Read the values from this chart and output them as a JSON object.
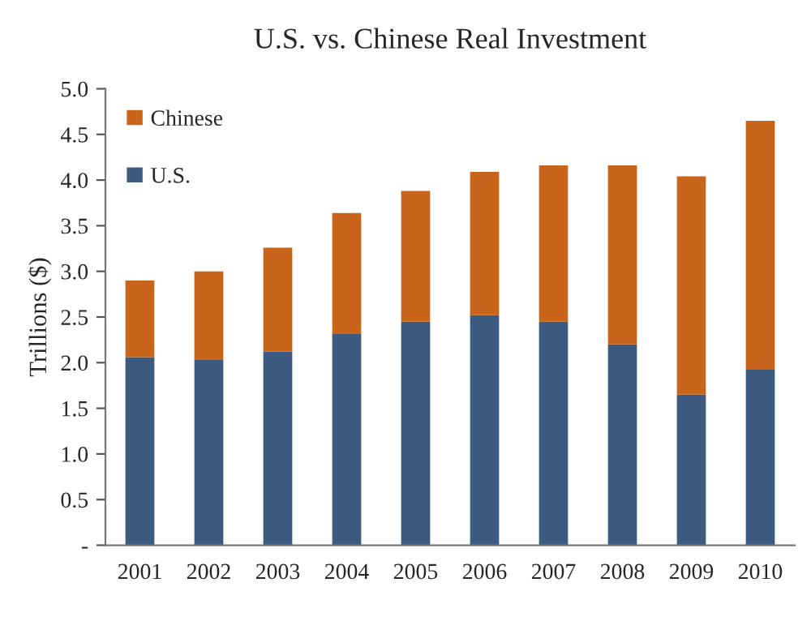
{
  "chart_data": {
    "type": "bar",
    "title": "U.S. vs. Chinese Real Investment",
    "ylabel": "Trillions ($)",
    "categories": [
      "2001",
      "2002",
      "2003",
      "2004",
      "2005",
      "2006",
      "2007",
      "2008",
      "2009",
      "2010"
    ],
    "stacked": true,
    "series": [
      {
        "name": "U.S.",
        "color": "#3d5a80",
        "values": [
          2.06,
          2.03,
          2.12,
          2.32,
          2.45,
          2.52,
          2.45,
          2.2,
          1.65,
          1.93
        ]
      },
      {
        "name": "Chinese",
        "color": "#c8651b",
        "values": [
          0.84,
          0.97,
          1.14,
          1.32,
          1.43,
          1.57,
          1.71,
          1.96,
          2.39,
          2.72
        ]
      }
    ],
    "ylim": [
      0,
      5
    ],
    "yticks": [
      {
        "value": 0,
        "label": "-"
      },
      {
        "value": 0.5,
        "label": "0.5"
      },
      {
        "value": 1,
        "label": "1.0"
      },
      {
        "value": 1.5,
        "label": "1.5"
      },
      {
        "value": 2,
        "label": "2.0"
      },
      {
        "value": 2.5,
        "label": "2.5"
      },
      {
        "value": 3,
        "label": "3.0"
      },
      {
        "value": 3.5,
        "label": "3.5"
      },
      {
        "value": 4,
        "label": "4.0"
      },
      {
        "value": 4.5,
        "label": "4.5"
      },
      {
        "value": 5,
        "label": "5.0"
      }
    ],
    "grid": false,
    "legend": "top left"
  }
}
